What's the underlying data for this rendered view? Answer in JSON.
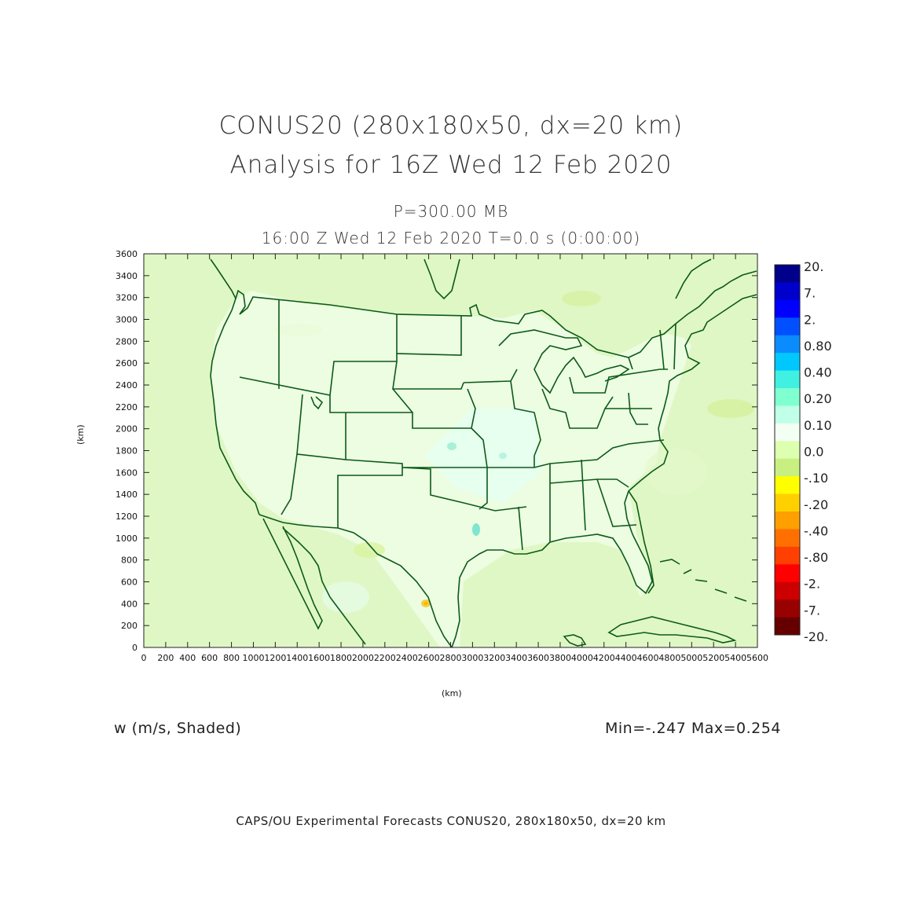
{
  "title_line1": "CONUS20 (280x180x50, dx=20 km)",
  "title_line2": "Analysis for 16Z Wed 12 Feb 2020",
  "level": "P=300.00 MB",
  "valid_time": "16:00 Z Wed 12 Feb 2020    T=0.0 s (0:00:00)",
  "variable_label": "w (m/s, Shaded)",
  "min_max": "Min=-.247  Max=0.254",
  "footer": "CAPS/OU Experimental Forecasts  CONUS20, 280x180x50, dx=20 km",
  "chart_data": {
    "type": "heatmap",
    "xlabel": "(km)",
    "ylabel": "(km)",
    "xlim": [
      0,
      5600
    ],
    "ylim": [
      0,
      3600
    ],
    "x_ticks": [
      "0",
      "200",
      "400",
      "600",
      "800",
      "1000",
      "1200",
      "1400",
      "1600",
      "1800",
      "2000",
      "2200",
      "2400",
      "2600",
      "2800",
      "3000",
      "3200",
      "3400",
      "3600",
      "3800",
      "4000",
      "4200",
      "4400",
      "4600",
      "4800",
      "5000",
      "5200",
      "5400",
      "5600"
    ],
    "y_ticks": [
      "0",
      "200",
      "400",
      "600",
      "800",
      "1000",
      "1200",
      "1400",
      "1600",
      "1800",
      "2000",
      "2200",
      "2400",
      "2600",
      "2800",
      "3000",
      "3200",
      "3400",
      "3600"
    ],
    "colorbar": {
      "labels": [
        "20.",
        "7.",
        "2.",
        "0.80",
        "0.40",
        "0.20",
        "0.10",
        "0.0",
        "-.10",
        "-.20",
        "-.40",
        "-.80",
        "-2.",
        "-7.",
        "-20."
      ],
      "colors": [
        "#00008b",
        "#0000cd",
        "#0000ff",
        "#0050ff",
        "#0a8cff",
        "#00c8ff",
        "#40f0e0",
        "#80ffd0",
        "#c0ffe8",
        "#f4fff4",
        "#dcffb0",
        "#c8f080",
        "#ffff00",
        "#ffd000",
        "#ffa000",
        "#ff7000",
        "#ff4000",
        "#ff0000",
        "#cc0000",
        "#990000",
        "#660000"
      ]
    }
  }
}
